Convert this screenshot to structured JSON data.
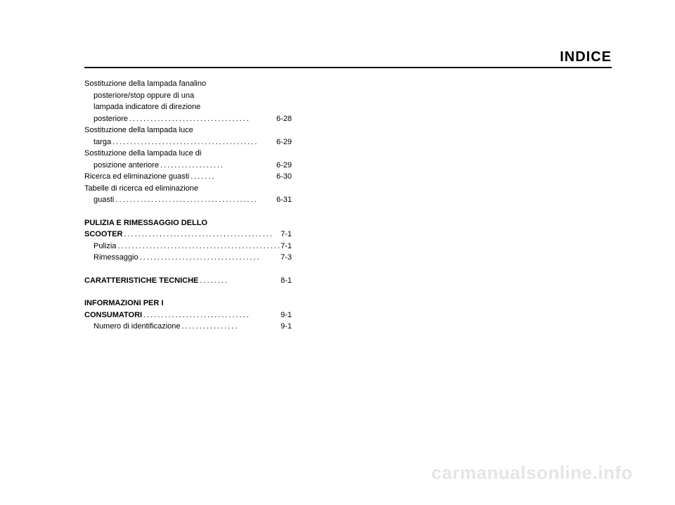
{
  "header": {
    "title": "INDICE"
  },
  "entries": [
    {
      "type": "multi",
      "lines": [
        "Sostituzione della lampada fanalino",
        "posteriore/stop oppure di una",
        "lampada indicatore di direzione"
      ],
      "indent": [
        false,
        true,
        true
      ],
      "final_text": "posteriore",
      "final_indent": true,
      "page": "6-28"
    },
    {
      "type": "multi",
      "lines": [
        "Sostituzione della lampada luce"
      ],
      "indent": [
        false
      ],
      "final_text": "targa",
      "final_indent": true,
      "page": "6-29"
    },
    {
      "type": "multi",
      "lines": [
        "Sostituzione della lampada luce di"
      ],
      "indent": [
        false
      ],
      "final_text": "posizione anteriore",
      "final_indent": true,
      "page": "6-29"
    },
    {
      "type": "single",
      "text": "Ricerca ed eliminazione guasti",
      "indent": false,
      "page": "6-30"
    },
    {
      "type": "multi",
      "lines": [
        "Tabelle di ricerca ed eliminazione"
      ],
      "indent": [
        false
      ],
      "final_text": "guasti",
      "final_indent": true,
      "page": "6-31"
    }
  ],
  "section2_heading_line1": "PULIZIA E RIMESSAGGIO DELLO",
  "section2_heading_final": "SCOOTER",
  "section2_heading_page": "7-1",
  "section2_entries": [
    {
      "type": "single",
      "text": "Pulizia",
      "indent": true,
      "page": "7-1"
    },
    {
      "type": "single",
      "text": "Rimessaggio",
      "indent": true,
      "page": "7-3"
    }
  ],
  "section3_heading_text": "CARATTERISTICHE TECNICHE",
  "section3_heading_page": "8-1",
  "section4_heading_line1": "INFORMAZIONI PER I",
  "section4_heading_final": "CONSUMATORI",
  "section4_heading_page": "9-1",
  "section4_entries": [
    {
      "type": "single",
      "text": "Numero di identificazione",
      "indent": true,
      "page": "9-1"
    }
  ],
  "watermark": "carmanualsonline.info",
  "colors": {
    "background": "#ffffff",
    "text": "#000000",
    "watermark": "#e5e5e5",
    "divider": "#000000"
  },
  "typography": {
    "title_fontsize": 20,
    "body_fontsize": 11,
    "watermark_fontsize": 26
  }
}
